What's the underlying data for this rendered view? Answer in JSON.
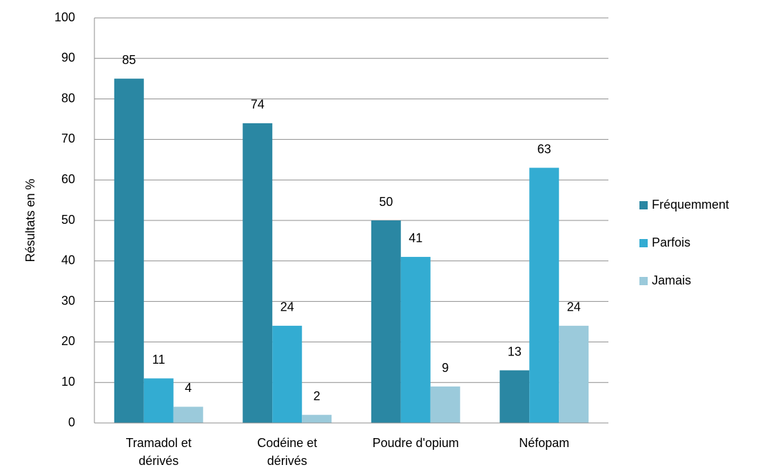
{
  "chart_data": {
    "type": "bar",
    "y_label": "Résultats en %",
    "categories": [
      "Tramadol et\ndérivés",
      "Codéine et\ndérivés",
      "Poudre d'opium",
      "Néfopam"
    ],
    "series": [
      {
        "name": "Fréquemment",
        "color": "#2a87a3",
        "values": [
          85,
          74,
          50,
          13
        ]
      },
      {
        "name": "Parfois",
        "color": "#33acd2",
        "values": [
          11,
          24,
          41,
          63
        ]
      },
      {
        "name": "Jamais",
        "color": "#9bcadb",
        "values": [
          4,
          2,
          9,
          24
        ]
      }
    ],
    "ylim": [
      0,
      100
    ],
    "yticks": [
      0,
      10,
      20,
      30,
      40,
      50,
      60,
      70,
      80,
      90,
      100
    ],
    "grid": true,
    "legend": "right"
  }
}
